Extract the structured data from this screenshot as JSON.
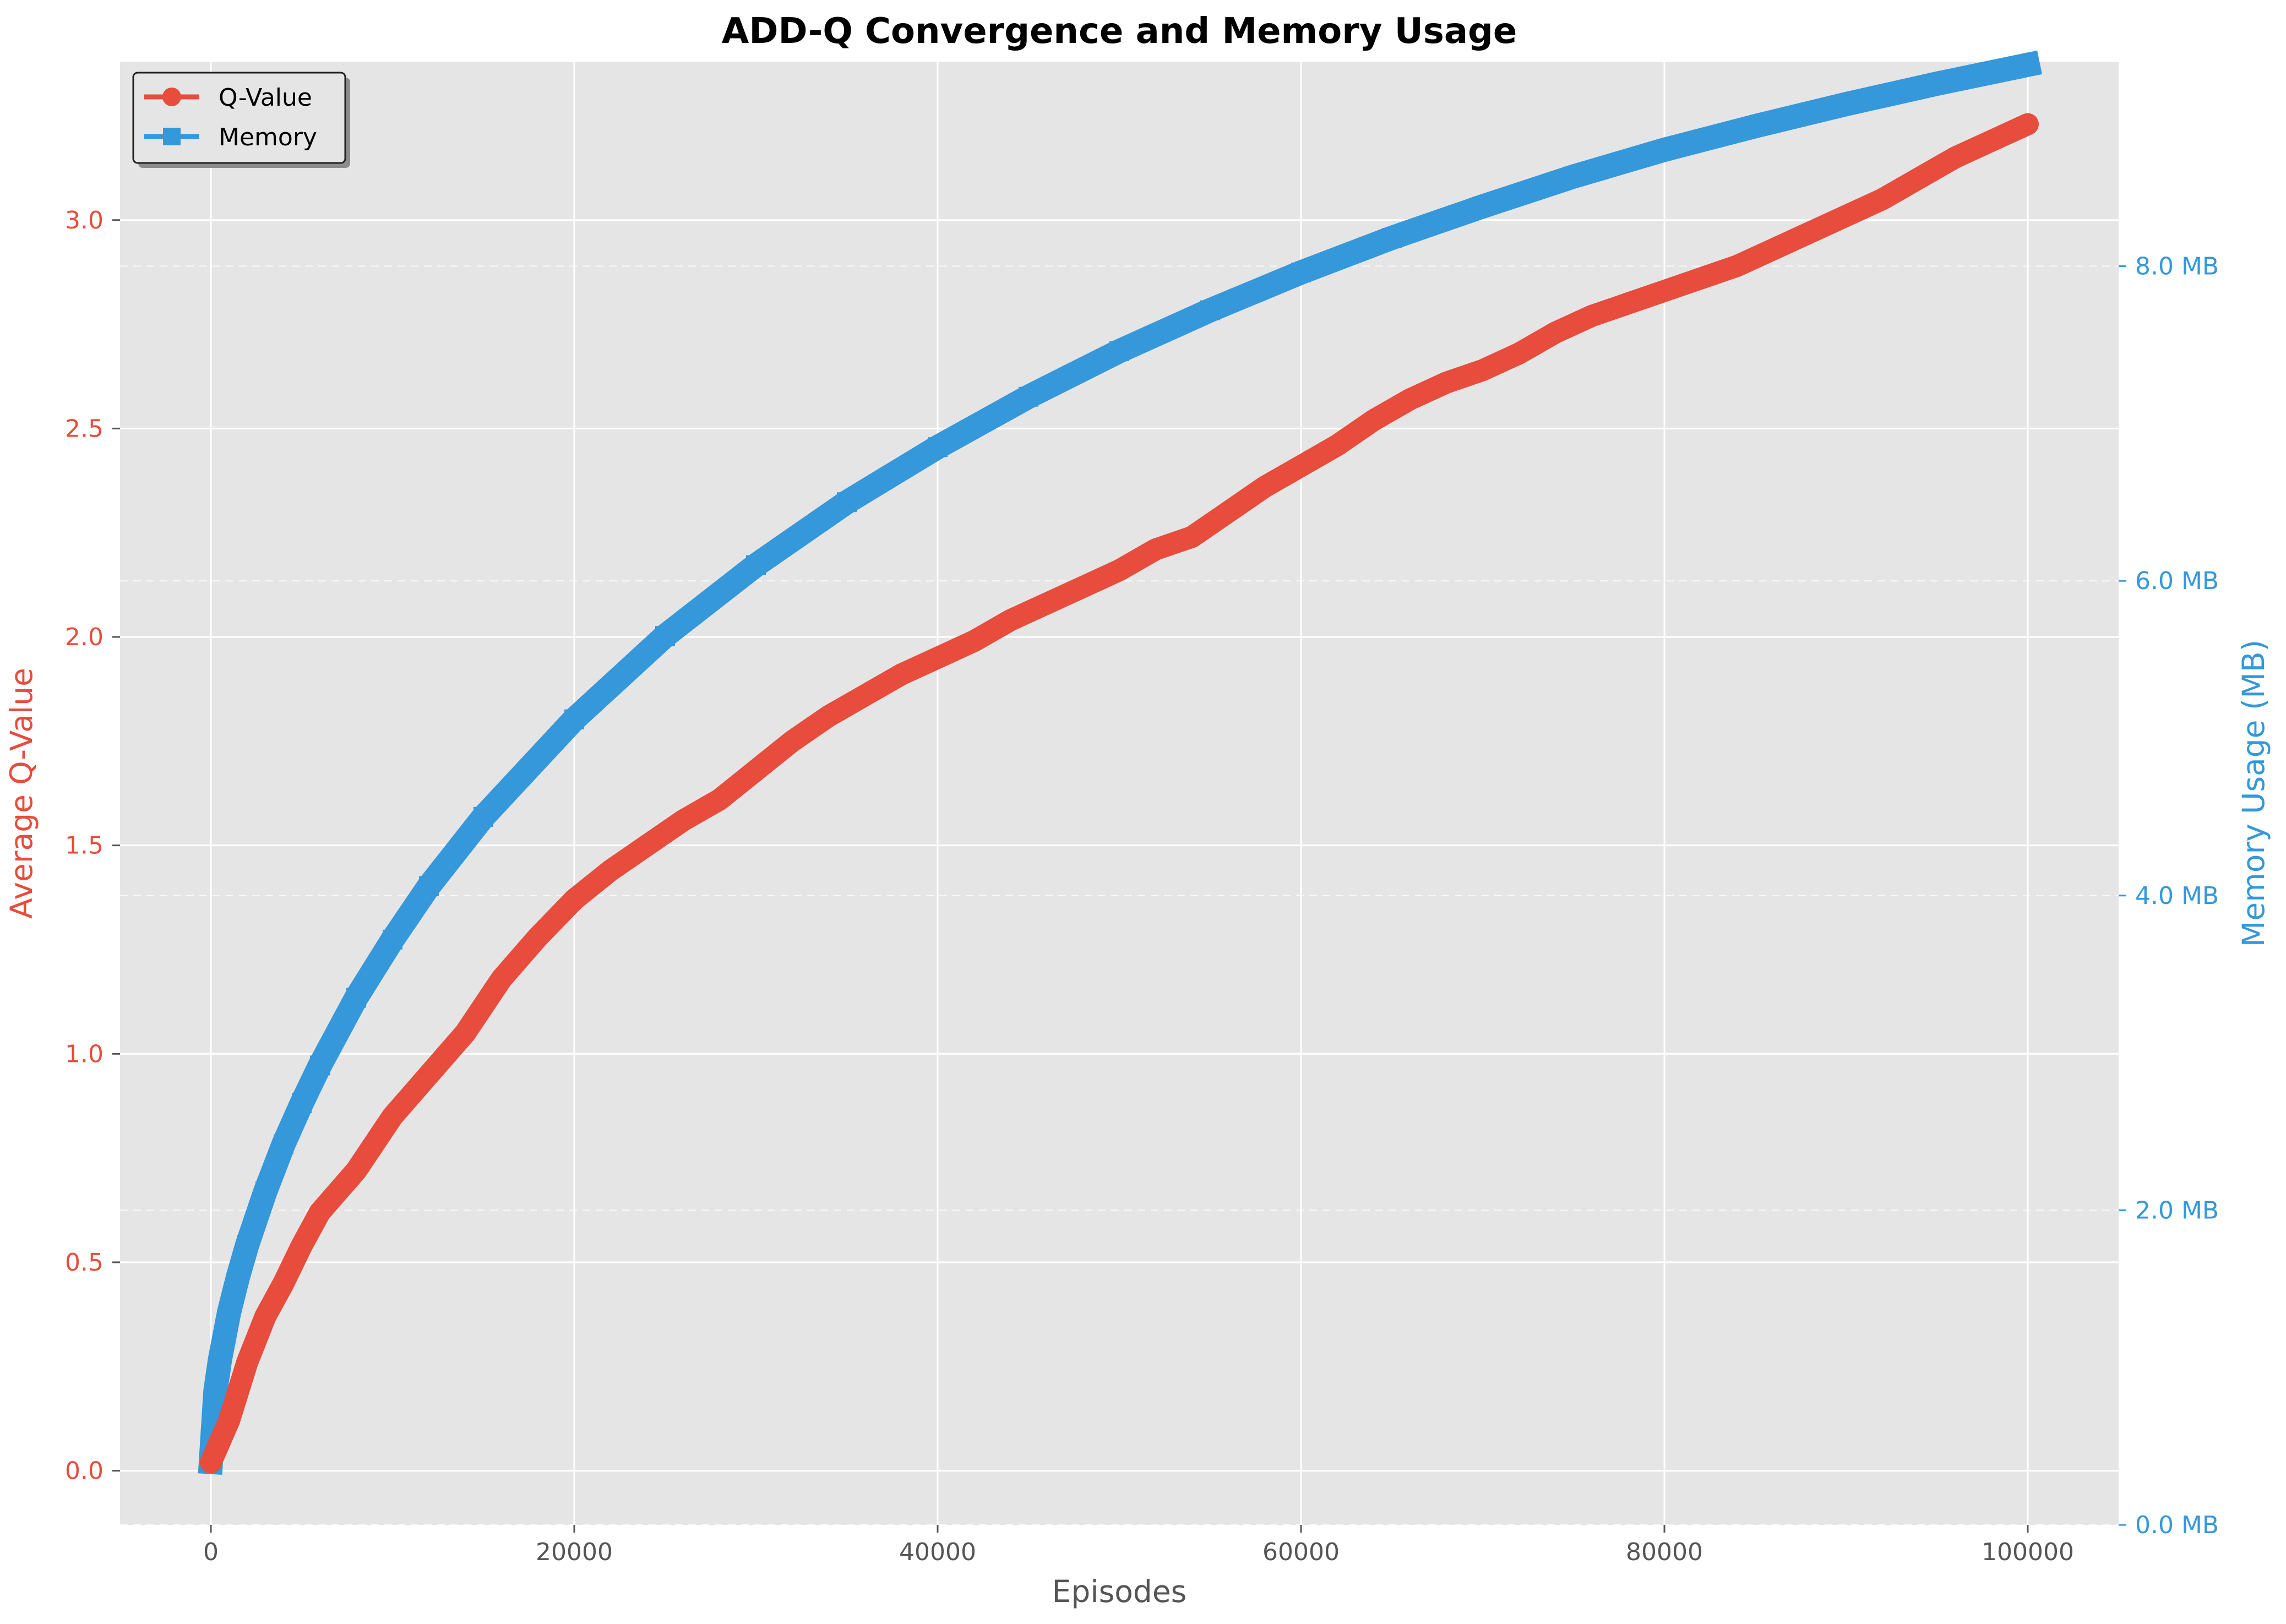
{
  "chart_data": {
    "type": "line",
    "title": "ADD-Q Convergence and Memory Usage",
    "xlabel": "Episodes",
    "ylabel_left": "Average Q-Value",
    "ylabel_right": "Memory Usage (MB)",
    "xlim": [
      -5000,
      105000
    ],
    "ylim_left": [
      -0.13,
      3.38
    ],
    "ylim_right": [
      0.0,
      9.3
    ],
    "x_ticks": [
      0,
      20000,
      40000,
      60000,
      80000,
      100000
    ],
    "x_tick_labels": [
      "0",
      "20000",
      "40000",
      "60000",
      "80000",
      "100000"
    ],
    "y_left_ticks": [
      0.0,
      0.5,
      1.0,
      1.5,
      2.0,
      2.5,
      3.0
    ],
    "y_left_tick_labels": [
      "0.0",
      "0.5",
      "1.0",
      "1.5",
      "2.0",
      "2.5",
      "3.0"
    ],
    "y_right_ticks": [
      0.0,
      2.0,
      4.0,
      6.0,
      8.0
    ],
    "y_right_tick_labels": [
      "0.0 MB",
      "2.0 MB",
      "4.0 MB",
      "6.0 MB",
      "8.0 MB"
    ],
    "grid": true,
    "legend_position": "top-left",
    "colors": {
      "q_value": "#e74c3c",
      "memory": "#3498db",
      "plot_bg": "#e5e5e5",
      "grid": "#ffffff"
    },
    "series": [
      {
        "name": "Q-Value",
        "axis": "left",
        "marker": "circle",
        "x": [
          0,
          1000,
          2000,
          3000,
          4000,
          5000,
          6000,
          8000,
          10000,
          12000,
          14000,
          16000,
          18000,
          20000,
          22000,
          24000,
          26000,
          28000,
          30000,
          32000,
          34000,
          36000,
          38000,
          40000,
          42000,
          44000,
          46000,
          48000,
          50000,
          52000,
          54000,
          56000,
          58000,
          60000,
          62000,
          64000,
          66000,
          68000,
          70000,
          72000,
          74000,
          76000,
          78000,
          80000,
          82000,
          84000,
          86000,
          88000,
          90000,
          92000,
          94000,
          96000,
          98000,
          100000
        ],
        "values": [
          0.02,
          0.12,
          0.26,
          0.37,
          0.45,
          0.54,
          0.62,
          0.72,
          0.85,
          0.95,
          1.05,
          1.18,
          1.28,
          1.37,
          1.44,
          1.5,
          1.56,
          1.61,
          1.68,
          1.75,
          1.81,
          1.86,
          1.91,
          1.95,
          1.99,
          2.04,
          2.08,
          2.12,
          2.16,
          2.21,
          2.24,
          2.3,
          2.36,
          2.41,
          2.46,
          2.52,
          2.57,
          2.61,
          2.64,
          2.68,
          2.73,
          2.77,
          2.8,
          2.83,
          2.86,
          2.89,
          2.93,
          2.97,
          3.01,
          3.05,
          3.1,
          3.15,
          3.19,
          3.23
        ]
      },
      {
        "name": "Memory",
        "axis": "right",
        "marker": "square",
        "x": [
          0,
          250,
          500,
          1000,
          1500,
          2000,
          3000,
          4000,
          5000,
          6000,
          8000,
          10000,
          12000,
          15000,
          20000,
          25000,
          30000,
          35000,
          40000,
          45000,
          50000,
          55000,
          60000,
          65000,
          70000,
          75000,
          80000,
          85000,
          90000,
          95000,
          100000
        ],
        "values": [
          0.4,
          0.85,
          1.05,
          1.35,
          1.58,
          1.78,
          2.12,
          2.42,
          2.68,
          2.92,
          3.35,
          3.72,
          4.06,
          4.5,
          5.12,
          5.65,
          6.1,
          6.5,
          6.85,
          7.17,
          7.46,
          7.72,
          7.96,
          8.18,
          8.38,
          8.57,
          8.74,
          8.89,
          9.03,
          9.16,
          9.28
        ]
      }
    ]
  }
}
